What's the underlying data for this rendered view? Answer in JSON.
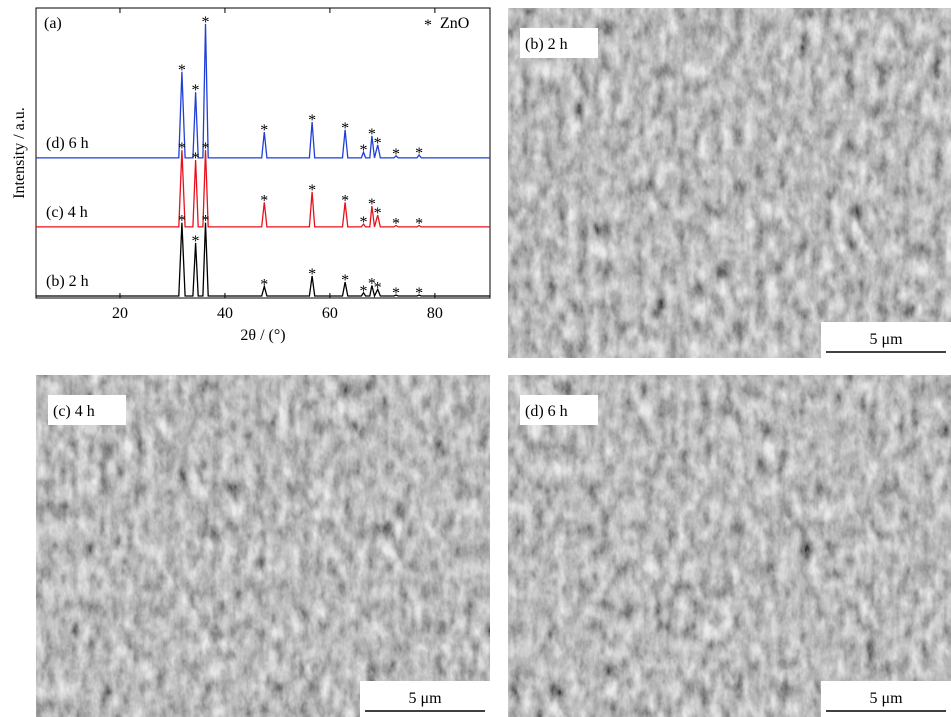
{
  "chart_data": {
    "type": "line",
    "panel_label": "(a)",
    "xlabel": "2θ / (°)",
    "ylabel": "Intensity / a.u.",
    "legend_marker": "*",
    "legend_label": "ZnO",
    "xlim": [
      4,
      90.5
    ],
    "xticks": [
      20,
      40,
      60,
      80
    ],
    "ylim": [
      0,
      100
    ],
    "x": [
      4,
      31.2,
      31.8,
      32.4,
      33.9,
      34.4,
      34.9,
      35.8,
      36.3,
      36.8,
      47,
      47.5,
      48,
      56.1,
      56.6,
      57.1,
      62.4,
      62.9,
      63.4,
      66,
      66.4,
      66.8,
      67.6,
      68,
      68.5,
      69.1,
      69.6,
      72.2,
      72.6,
      73,
      76.6,
      77,
      77.4,
      90.5
    ],
    "peaks": [
      31.8,
      34.4,
      36.3,
      47.5,
      56.6,
      62.9,
      66.4,
      68,
      69.1,
      72.6,
      77
    ],
    "series": [
      {
        "name": "(b) 2 h",
        "color": "#000000",
        "values": [
          0.7,
          0.7,
          26,
          0.7,
          0.7,
          19,
          0.7,
          0.7,
          26,
          0.7,
          0.7,
          4,
          0.7,
          0.7,
          7.6,
          0.7,
          0.7,
          5.5,
          0.7,
          0.7,
          1.8,
          0.7,
          0.7,
          4.3,
          0.7,
          3,
          0.7,
          0.7,
          1.0,
          0.7,
          0.7,
          1.0,
          0.7,
          0.7
        ]
      },
      {
        "name": "(c) 4 h",
        "color": "#e8101a",
        "values": [
          24.5,
          24.5,
          51,
          24.5,
          24.5,
          47.6,
          24.5,
          24.5,
          51,
          24.5,
          24.5,
          33,
          24.5,
          24.5,
          36.6,
          24.5,
          24.5,
          33,
          24.5,
          24.5,
          25.5,
          24.5,
          24.5,
          31.7,
          24.5,
          28.6,
          24.5,
          24.5,
          25,
          24.5,
          24.5,
          25,
          24.5,
          24.5
        ]
      },
      {
        "name": "(d) 6 h",
        "color": "#1f3fd6",
        "values": [
          48.3,
          48.3,
          78,
          48.3,
          48.3,
          71,
          48.3,
          48.3,
          94.5,
          48.3,
          48.3,
          57.2,
          48.3,
          48.3,
          60.7,
          48.3,
          48.3,
          58,
          48.3,
          48.3,
          50.3,
          48.3,
          48.3,
          55.9,
          48.3,
          52.8,
          48.3,
          48.3,
          49,
          48.3,
          48.3,
          49.3,
          48.3,
          48.3
        ]
      }
    ]
  },
  "panels": [
    {
      "label": "(b) 2 h",
      "scale_bar": "5 μm"
    },
    {
      "label": "(c) 4 h",
      "scale_bar": "5 μm"
    },
    {
      "label": "(d) 6 h",
      "scale_bar": "5 μm"
    }
  ]
}
